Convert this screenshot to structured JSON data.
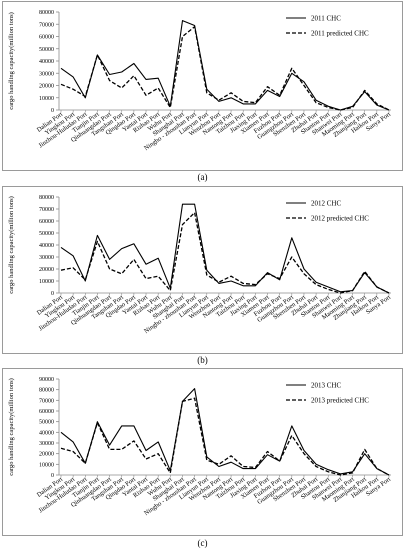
{
  "colors": {
    "line": "#000000",
    "axis": "#8c8c8c",
    "frame": "#9a9a9a"
  },
  "chart_data": [
    {
      "type": "line",
      "caption": "(a)",
      "ylabel": "cargo handling capacity(million tons)",
      "ylim": [
        0,
        80000
      ],
      "yticks": [
        0,
        10000,
        20000,
        30000,
        40000,
        50000,
        60000,
        70000,
        80000
      ],
      "legend_position": "top-right",
      "categories": [
        "Dalian Port",
        "Yingkou Port",
        "Jinzhou-Huludao Port",
        "Tianjin Port",
        "Qinhuangdao Port",
        "Tangshan Port",
        "Qingdao Port",
        "Yantai Port",
        "Rizhao Port",
        "Wuhu Port",
        "Shanghai Port",
        "Ningbo - zhoushan Port",
        "Lianyun Port",
        "Wenzhou Port",
        "Nantong Port",
        "Taizhou Port",
        "Jiaxing Port",
        "Xiamen Port",
        "Fuzhou Port",
        "Guangzhou Port",
        "Shenzhen Port",
        "Zhuhai Port",
        "Shantou Port",
        "Shanwei Port",
        "Maoming Port",
        "Zhanjiang Port",
        "Haikou Port",
        "Sanya Port"
      ],
      "series": [
        {
          "name": "2011 CHC",
          "style": "solid",
          "values": [
            34000,
            27000,
            10000,
            45000,
            29000,
            31000,
            38000,
            25000,
            26000,
            3000,
            73000,
            69000,
            17000,
            7000,
            10000,
            5000,
            5000,
            16000,
            11000,
            30000,
            23000,
            8000,
            3000,
            0,
            3000,
            15000,
            4000,
            0
          ]
        },
        {
          "name": "2011 predicted CHC",
          "style": "dashed",
          "values": [
            21000,
            17000,
            11000,
            45000,
            24000,
            18000,
            28000,
            12000,
            18000,
            2000,
            60000,
            68000,
            14000,
            8000,
            14000,
            7000,
            6000,
            19000,
            12000,
            34000,
            20000,
            6000,
            2000,
            0,
            2000,
            16000,
            5000,
            0
          ]
        }
      ]
    },
    {
      "type": "line",
      "caption": "(b)",
      "ylabel": "cargo handling capacity(million tons)",
      "ylim": [
        0,
        80000
      ],
      "yticks": [
        0,
        10000,
        20000,
        30000,
        40000,
        50000,
        60000,
        70000,
        80000
      ],
      "legend_position": "top-right",
      "categories": [
        "Dalian Port",
        "Yingkou Port",
        "Jinzhou-Huludao Port",
        "Tianjin Port",
        "Qinhuangdao Port",
        "Tangshan Port",
        "Qingdao Port",
        "Yantai Port",
        "Rizhao Port",
        "Wuhu Port",
        "Shanghai Port",
        "Ningbo - zhoushan Port",
        "Lianyun Port",
        "Wenzhou Port",
        "Nantong Port",
        "Taizhou Port",
        "Jiaxing Port",
        "Xiamen Port",
        "Fuzhou Port",
        "Guangzhou Port",
        "Shenzhen Port",
        "Zhuhai Port",
        "Shantou Port",
        "Shanwei Port",
        "Maoming Port",
        "Zhanjiang Port",
        "Haikou Port",
        "Sanya Port"
      ],
      "series": [
        {
          "name": "2012 CHC",
          "style": "solid",
          "values": [
            38000,
            31000,
            10000,
            48000,
            28000,
            37000,
            41000,
            24000,
            29000,
            4000,
            74000,
            74000,
            19000,
            8000,
            10000,
            6000,
            6000,
            17000,
            11000,
            46000,
            20000,
            9000,
            5000,
            1000,
            2000,
            17000,
            5000,
            0
          ]
        },
        {
          "name": "2012 predicted CHC",
          "style": "dashed",
          "values": [
            19000,
            21000,
            11000,
            43000,
            20000,
            16000,
            28000,
            12000,
            14000,
            2000,
            57000,
            67000,
            15000,
            9000,
            14000,
            8000,
            7000,
            16000,
            12000,
            30000,
            16000,
            7000,
            3000,
            0,
            2000,
            18000,
            5000,
            0
          ]
        }
      ]
    },
    {
      "type": "line",
      "caption": "(c)",
      "ylabel": "cargo handling capacity(million tons)",
      "ylim": [
        0,
        90000
      ],
      "yticks": [
        0,
        10000,
        20000,
        30000,
        40000,
        50000,
        60000,
        70000,
        80000,
        90000
      ],
      "legend_position": "top-right",
      "categories": [
        "Dalian Port",
        "Yingkou Port",
        "Jinzhou-Huludao Port",
        "Tianjin Port",
        "Qinhuangdao Port",
        "Tangshan Port",
        "Qingdao Port",
        "Yantai Port",
        "Rizhao Port",
        "Wuhu Port",
        "Shanghai Port",
        "Ningbo - zhoushan Port",
        "Lianyun Port",
        "Wenzhou Port",
        "Nantong Port",
        "Taizhou Port",
        "Jiaxing Port",
        "Xiamen Port",
        "Fuzhou Port",
        "Guangzhou Port",
        "Shenzhen Port",
        "Zhuhai Port",
        "Shantou Port",
        "Shanwei Port",
        "Maoming Port",
        "Zhanjiang Port",
        "Haikou Port",
        "Sanya Port"
      ],
      "series": [
        {
          "name": "2013 CHC",
          "style": "solid",
          "values": [
            40000,
            31000,
            11000,
            50000,
            28000,
            46000,
            46000,
            23000,
            31000,
            4000,
            69000,
            81000,
            17000,
            8000,
            12000,
            6000,
            6000,
            19000,
            13000,
            46000,
            23000,
            10000,
            5000,
            1000,
            3000,
            20000,
            6000,
            0
          ]
        },
        {
          "name": "2013 predicted CHC",
          "style": "dashed",
          "values": [
            25000,
            22000,
            11000,
            49000,
            24000,
            24000,
            32000,
            15000,
            20000,
            2000,
            69000,
            72000,
            14000,
            10000,
            18000,
            8000,
            7000,
            22000,
            13000,
            37000,
            20000,
            8000,
            3000,
            0,
            2000,
            24000,
            6000,
            0
          ]
        }
      ]
    }
  ]
}
